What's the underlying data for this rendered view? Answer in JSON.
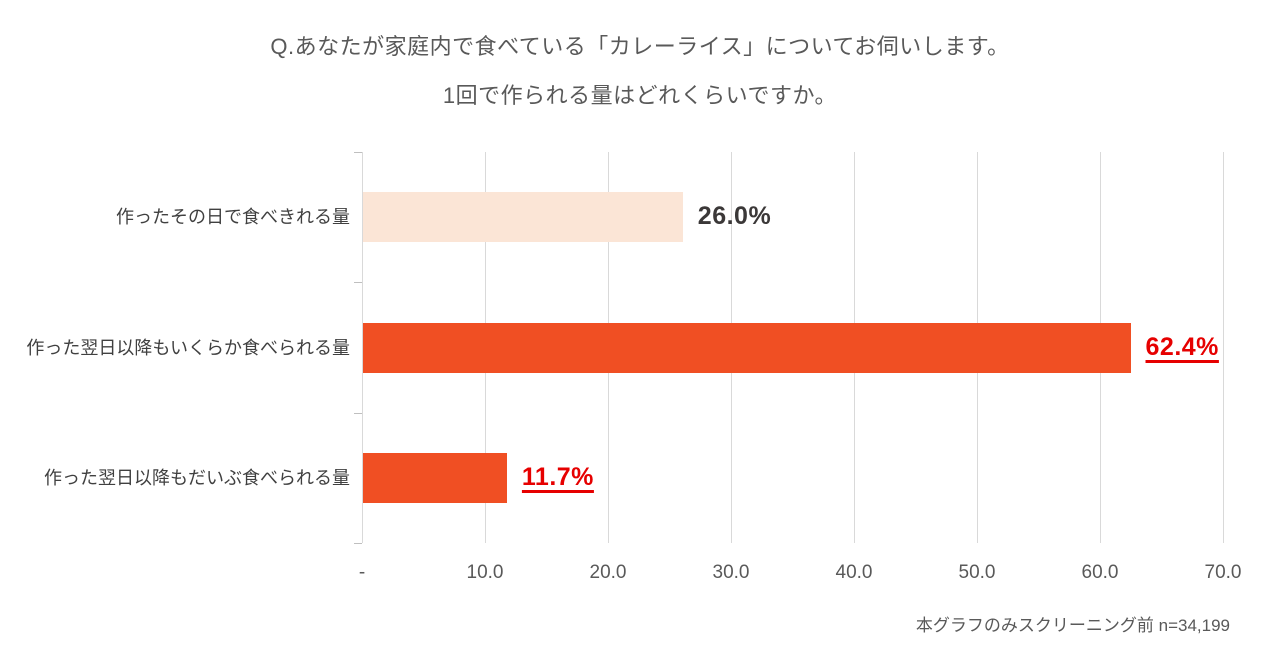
{
  "title": {
    "line1": "Q.あなたが家庭内で食べている「カレーライス」についてお伺いします。",
    "line2": "1回で作られる量はどれくらいですか。"
  },
  "chart_data": {
    "type": "bar",
    "orientation": "horizontal",
    "title": "",
    "categories": [
      "作ったその日で食べきれる量",
      "作った翌日以降もいくらか食べられる量",
      "作った翌日以降もだいぶ食べられる量"
    ],
    "values": [
      26.0,
      62.4,
      11.7
    ],
    "value_labels": [
      "26.0%",
      "62.4%",
      "11.7%"
    ],
    "emphasized": [
      false,
      true,
      true
    ],
    "xlim": [
      0,
      70
    ],
    "x_tick_labels": [
      "-",
      "10.0",
      "20.0",
      "30.0",
      "40.0",
      "50.0",
      "60.0",
      "70.0"
    ],
    "grid": true,
    "legend": false,
    "bar_colors": [
      "#FBE5D6",
      "#F04F23",
      "#F04F23"
    ],
    "value_label_colors": [
      "#3B3838",
      "#E60000",
      "#E60000"
    ]
  },
  "footer": {
    "note": "本グラフのみスクリーニング前 n=34,199"
  },
  "colors": {
    "accent_orange": "#F04F23",
    "accent_light_peach": "#FBE5D6",
    "emphasis_red": "#E60000",
    "gridline_gray": "#D9D9D9",
    "text_gray": "#595959"
  }
}
